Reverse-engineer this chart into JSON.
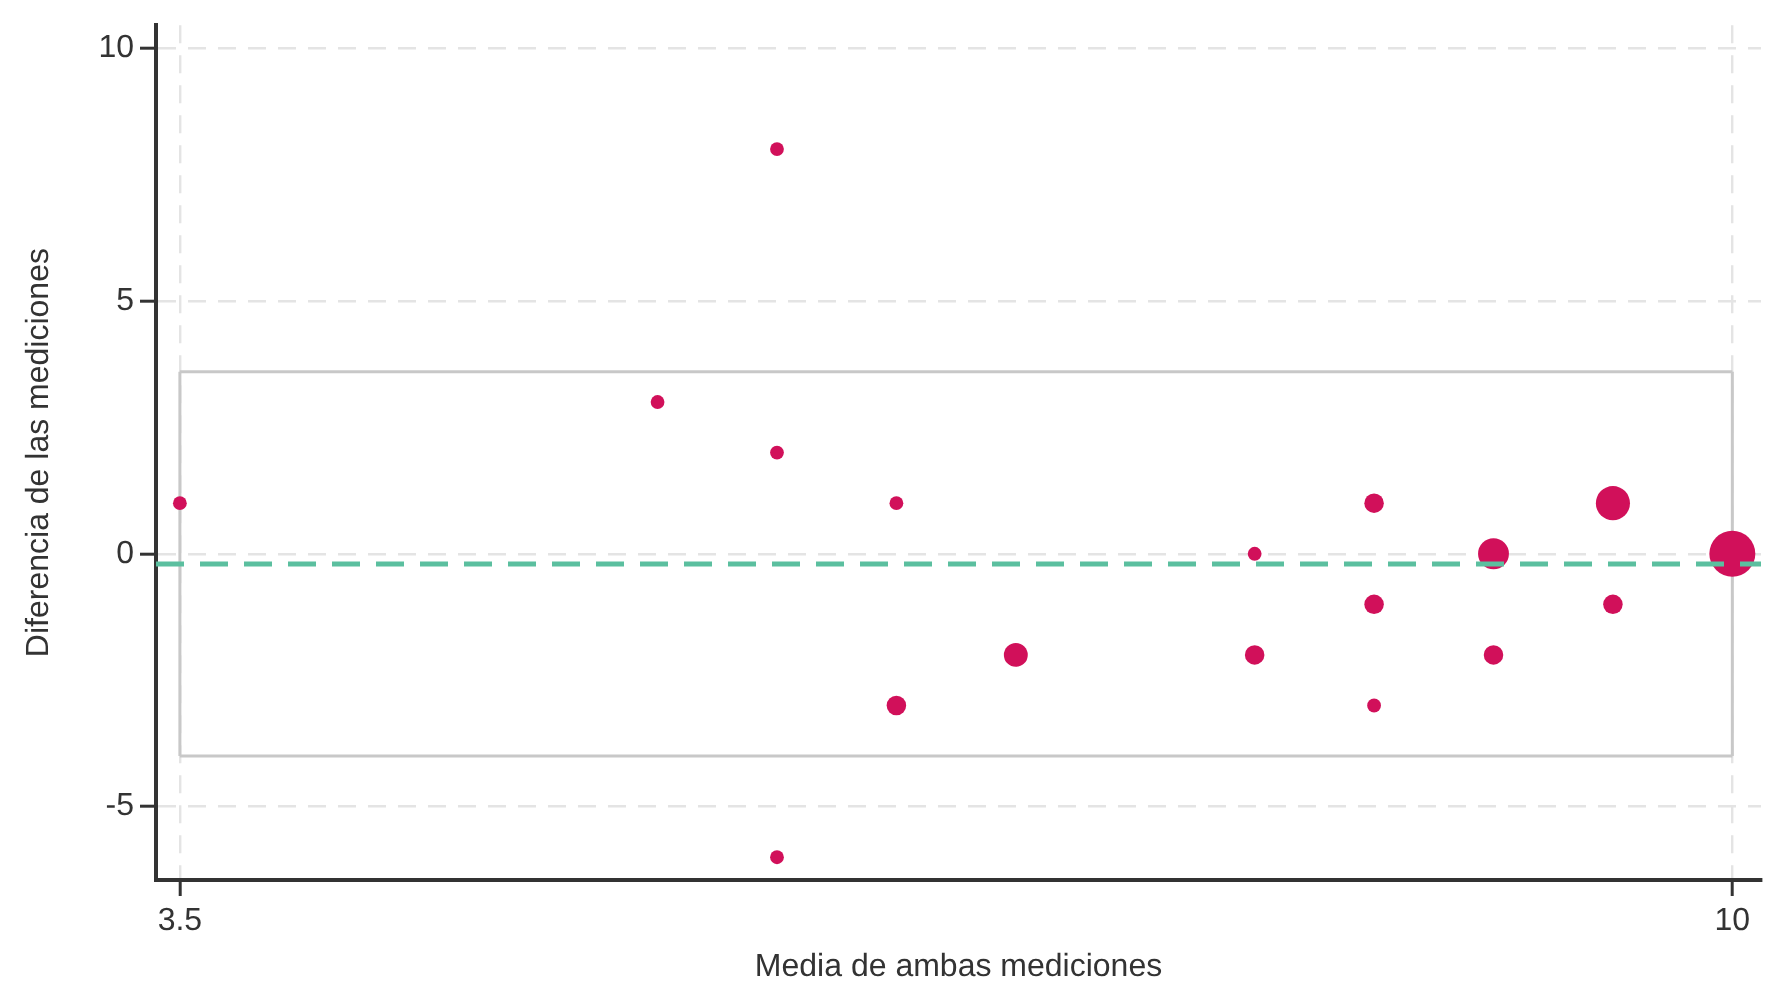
{
  "chart_data": {
    "type": "bubble",
    "xlabel": "Media de ambas mediciones",
    "ylabel": "Diferencia de las mediciones",
    "x": [
      3.5,
      5.5,
      6,
      6,
      6,
      6.5,
      6.5,
      7,
      8,
      8,
      8.5,
      8.5,
      8.5,
      9,
      9,
      9.5,
      9.5,
      10
    ],
    "values": [
      1,
      3,
      8,
      2,
      -6,
      1,
      -3,
      -2,
      0,
      -2,
      1,
      -1,
      -3,
      0,
      -2,
      1,
      -1,
      0
    ],
    "sizes": [
      0.09,
      0.09,
      0.09,
      0.09,
      0.09,
      0.09,
      0.18,
      0.27,
      0.09,
      0.18,
      0.18,
      0.18,
      0.09,
      0.45,
      0.18,
      0.55,
      0.18,
      1
    ],
    "color": "#d1105a",
    "xlim": [
      3.4,
      10.12
    ],
    "ylim": [
      -6.45,
      10.45
    ],
    "xticks": [
      3.5,
      10
    ],
    "yticks": [
      -5,
      0,
      5,
      10
    ],
    "grid": true,
    "ref_lines": [
      {
        "axis": "y",
        "value": -0.2,
        "color": "#5bbf9f",
        "line_style": "dashed"
      },
      {
        "axis": "y",
        "value": 3.6,
        "color": "#c8c8c8",
        "line_style": "solid"
      },
      {
        "axis": "y",
        "value": -4.0,
        "color": "#c8c8c8",
        "line_style": "solid"
      },
      {
        "axis": "x",
        "value": 3.5,
        "color": "#c8c8c8",
        "line_style": "solid"
      },
      {
        "axis": "x",
        "value": 10,
        "color": "#c8c8c8",
        "line_style": "solid"
      }
    ]
  }
}
